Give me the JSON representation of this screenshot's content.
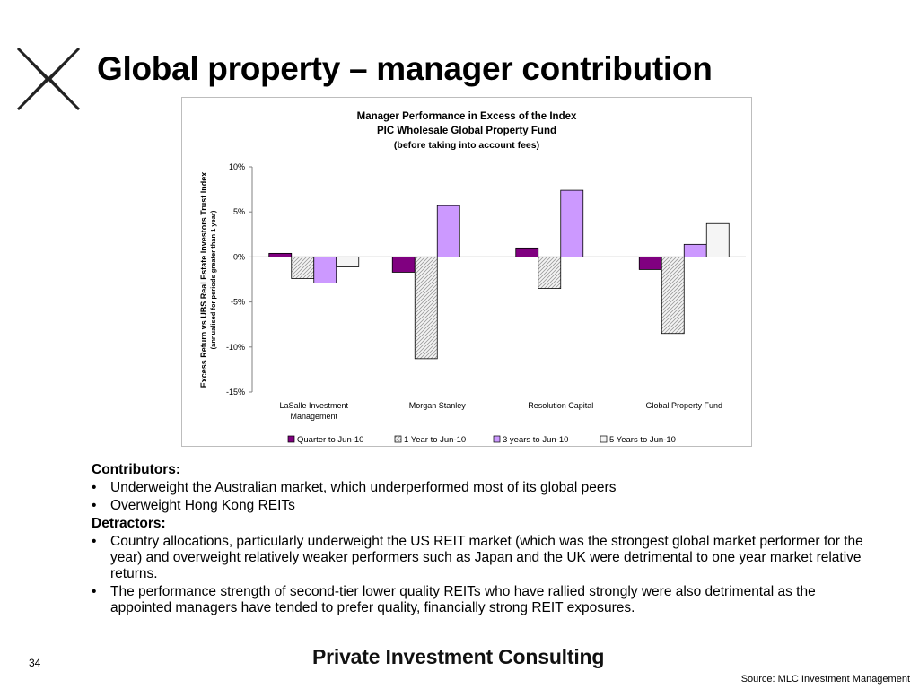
{
  "slide": {
    "title": "Global property – manager contribution",
    "page_number": "34",
    "brand": "Private Investment Consulting",
    "source": "Source: MLC Investment Management",
    "logo_icon": "x-cross-logo-icon"
  },
  "bullets": {
    "contributors_heading": "Contributors:",
    "contributors": [
      "Underweight the Australian market, which underperformed most of its global peers",
      "Overweight Hong Kong REITs"
    ],
    "detractors_heading": "Detractors:",
    "detractors": [
      "Country allocations, particularly underweight the US REIT market (which was the strongest global market performer for the year) and overweight relatively weaker performers such as Japan and the UK were detrimental to one year market relative returns.",
      "The performance strength of second-tier lower quality REITs who have rallied strongly were also detrimental as the appointed managers have tended to prefer quality, financially strong REIT exposures."
    ],
    "bullet_char": "•"
  },
  "chart_data": {
    "type": "bar",
    "title_lines": [
      "Manager Performance in Excess of the Index",
      "PIC Wholesale Global Property Fund",
      "(before taking into account fees)"
    ],
    "ylabel": "Excess Return vs UBS Real Estate Investors Trust Index",
    "ylabel_sub": "(annualised for periods greater than 1 year)",
    "categories": [
      [
        "LaSalle Investment",
        "Management"
      ],
      [
        "Morgan Stanley"
      ],
      [
        "Resolution Capital"
      ],
      [
        "Global Property Fund"
      ]
    ],
    "series": [
      {
        "name": "Quarter to Jun-10",
        "values": [
          0.4,
          -1.7,
          1.0,
          -1.4
        ],
        "color": "#800080",
        "pattern": "solid"
      },
      {
        "name": "1 Year to Jun-10",
        "values": [
          -2.4,
          -11.3,
          -3.5,
          -8.5
        ],
        "color": "#f0f0f0",
        "pattern": "hatch"
      },
      {
        "name": "3 years to  Jun-10",
        "values": [
          -2.9,
          5.7,
          7.4,
          1.4
        ],
        "color": "#cc99ff",
        "pattern": "solid"
      },
      {
        "name": "5 Years to  Jun-10",
        "values": [
          -1.1,
          null,
          null,
          3.7
        ],
        "color": "#f5f5f5",
        "pattern": "solid"
      }
    ],
    "ylim": [
      -15,
      10
    ],
    "yticks": [
      10,
      5,
      0,
      -5,
      -10,
      -15
    ],
    "ytick_labels": [
      "10%",
      "5%",
      "0%",
      "-5%",
      "-10%",
      "-15%"
    ],
    "grid": false,
    "legend": "bottom"
  }
}
